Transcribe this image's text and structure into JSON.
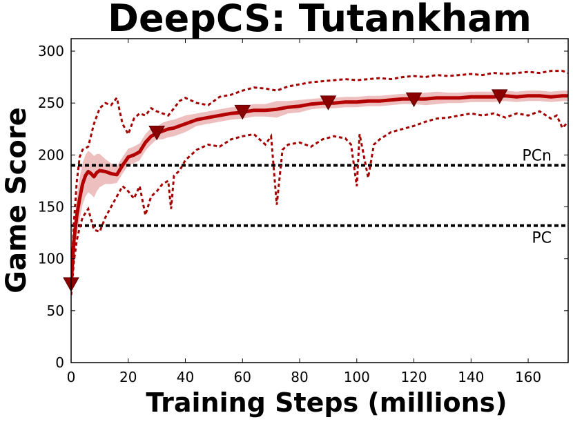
{
  "chart_data": {
    "type": "line",
    "title": "DeepCS: Tutankham",
    "xlabel": "Training Steps (millions)",
    "ylabel": "Game Score",
    "xlim": [
      0,
      174
    ],
    "ylim": [
      0,
      312
    ],
    "xticks": [
      "0",
      "20",
      "40",
      "60",
      "80",
      "100",
      "120",
      "140",
      "160"
    ],
    "yticks": [
      "0",
      "50",
      "100",
      "150",
      "200",
      "250",
      "300"
    ],
    "grid": false,
    "legend": "none",
    "colors": {
      "mean": "#b30000",
      "band": "#e8a9a9",
      "bounds": "#a30000",
      "markers": "#8b0000",
      "reference": "#000000"
    },
    "reference_lines": [
      {
        "label": "PCn",
        "value": 190
      },
      {
        "label": "PC",
        "value": 132
      }
    ],
    "mean": {
      "x": [
        0,
        1,
        2,
        3,
        4,
        5,
        6,
        7,
        8,
        9,
        10,
        12,
        14,
        16,
        18,
        20,
        22,
        24,
        26,
        28,
        30,
        32,
        34,
        36,
        38,
        40,
        44,
        48,
        52,
        56,
        60,
        64,
        68,
        72,
        76,
        80,
        84,
        88,
        92,
        96,
        100,
        104,
        108,
        112,
        116,
        120,
        124,
        128,
        132,
        136,
        140,
        144,
        148,
        152,
        156,
        160,
        164,
        168,
        172,
        174
      ],
      "y": [
        75,
        118,
        142,
        158,
        172,
        180,
        184,
        182,
        179,
        183,
        185,
        184,
        182,
        181,
        190,
        198,
        200,
        203,
        212,
        218,
        221,
        223,
        225,
        226,
        228,
        230,
        234,
        236,
        238,
        240,
        241,
        243,
        243,
        244,
        246,
        247,
        249,
        250,
        250,
        251,
        251,
        252,
        252,
        253,
        254,
        254,
        254,
        255,
        255,
        255,
        256,
        256,
        256,
        257,
        256,
        257,
        257,
        256,
        257,
        257
      ],
      "band": [
        8,
        14,
        18,
        20,
        20,
        20,
        20,
        20,
        20,
        18,
        16,
        12,
        10,
        8,
        8,
        8,
        8,
        8,
        8,
        8,
        6,
        8,
        8,
        8,
        8,
        8,
        6,
        6,
        6,
        6,
        6,
        6,
        6,
        8,
        6,
        6,
        5,
        5,
        5,
        5,
        5,
        5,
        5,
        5,
        5,
        5,
        6,
        6,
        5,
        5,
        5,
        5,
        5,
        5,
        5,
        5,
        5,
        5,
        5,
        5
      ]
    },
    "upper": {
      "x": [
        0,
        1,
        2,
        3,
        4,
        6,
        8,
        10,
        12,
        14,
        16,
        18,
        20,
        22,
        24,
        26,
        28,
        30,
        32,
        34,
        36,
        38,
        40,
        44,
        48,
        52,
        56,
        60,
        64,
        68,
        72,
        76,
        80,
        84,
        88,
        92,
        96,
        100,
        104,
        108,
        112,
        116,
        120,
        124,
        128,
        132,
        136,
        140,
        144,
        148,
        152,
        156,
        160,
        164,
        168,
        172,
        174
      ],
      "y": [
        78,
        135,
        175,
        198,
        205,
        208,
        230,
        245,
        250,
        248,
        255,
        230,
        220,
        235,
        240,
        238,
        245,
        242,
        240,
        238,
        245,
        252,
        255,
        250,
        248,
        256,
        258,
        262,
        265,
        264,
        262,
        266,
        268,
        270,
        271,
        272,
        273,
        272,
        273,
        274,
        273,
        275,
        276,
        275,
        277,
        276,
        277,
        278,
        277,
        279,
        278,
        279,
        280,
        279,
        281,
        281,
        279
      ]
    },
    "lower": {
      "x": [
        0,
        1,
        2,
        3,
        4,
        6,
        8,
        10,
        12,
        14,
        16,
        18,
        20,
        22,
        24,
        26,
        28,
        30,
        32,
        34,
        35,
        36,
        38,
        40,
        44,
        48,
        52,
        56,
        60,
        64,
        68,
        70,
        72,
        74,
        76,
        80,
        84,
        88,
        92,
        96,
        98,
        100,
        101,
        104,
        106,
        108,
        112,
        116,
        120,
        124,
        128,
        132,
        136,
        140,
        144,
        148,
        152,
        156,
        160,
        164,
        168,
        170,
        172,
        174
      ],
      "y": [
        65,
        98,
        118,
        130,
        140,
        148,
        128,
        126,
        140,
        150,
        160,
        170,
        165,
        158,
        170,
        142,
        160,
        165,
        172,
        175,
        148,
        180,
        185,
        195,
        205,
        210,
        208,
        215,
        218,
        220,
        210,
        218,
        152,
        205,
        210,
        212,
        208,
        215,
        218,
        216,
        210,
        170,
        220,
        178,
        210,
        215,
        222,
        225,
        228,
        232,
        235,
        236,
        238,
        240,
        238,
        240,
        236,
        240,
        238,
        242,
        235,
        238,
        226,
        232
      ]
    },
    "markers": {
      "x": [
        0,
        30,
        60,
        90,
        120,
        150
      ],
      "y": [
        76,
        222,
        242,
        251,
        254,
        257
      ]
    }
  }
}
